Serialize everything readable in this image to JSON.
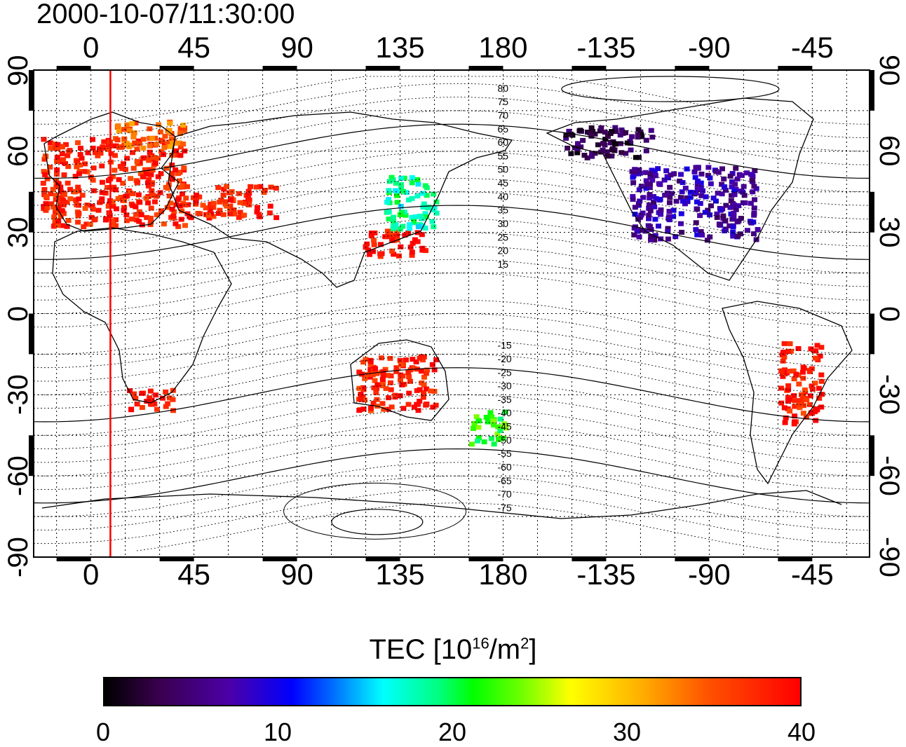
{
  "timestamp": "2000-10-07/11:30:00",
  "lon_ticks_top": [
    "0",
    "45",
    "90",
    "135",
    "180",
    "-135",
    "-90",
    "-45"
  ],
  "lon_ticks_bottom": [
    "0",
    "45",
    "90",
    "135",
    "180",
    "-135",
    "-90",
    "-45"
  ],
  "lat_ticks_left": [
    "90",
    "60",
    "30",
    "0",
    "-30",
    "-60",
    "-90"
  ],
  "lat_ticks_right": [
    "90",
    "60",
    "30",
    "0",
    "-30",
    "-60",
    "-90"
  ],
  "contour_labels": [
    "80",
    "75",
    "70",
    "65",
    "60",
    "55",
    "50",
    "45",
    "40",
    "35",
    "30",
    "25",
    "20",
    "15",
    "-15",
    "-20",
    "-25",
    "-30",
    "-35",
    "-40",
    "-45",
    "-50",
    "-55",
    "-60",
    "-65",
    "-70",
    "-75"
  ],
  "colorbar": {
    "title_prefix": "TEC  [10",
    "title_sup1": "16",
    "title_mid": "/m",
    "title_sup2": "2",
    "title_suffix": "]",
    "min_label": "0",
    "tick_labels": [
      "0",
      "10",
      "20",
      "30",
      "40"
    ],
    "range": [
      0,
      40
    ]
  },
  "colors": {
    "tec_high": "#ff0000",
    "tec_mid": "#00ff00",
    "tec_low": "#0000ff",
    "tec_zero": "#000000",
    "terminator": "#ff0000"
  },
  "map": {
    "lon_range": [
      -25,
      340
    ],
    "lat_range": [
      -90,
      90
    ],
    "terminator_longitude": 8.5
  },
  "tec_regions": [
    {
      "name": "europe",
      "lon": [
        -22,
        40
      ],
      "lat": [
        33,
        66
      ],
      "tec": 38
    },
    {
      "name": "scandinavia",
      "lon": [
        10,
        40
      ],
      "lat": [
        62,
        72
      ],
      "tec": 34
    },
    {
      "name": "middle-east",
      "lon": [
        40,
        80
      ],
      "lat": [
        36,
        48
      ],
      "tec": 38
    },
    {
      "name": "east-asia-south",
      "lon": [
        118,
        145
      ],
      "lat": [
        22,
        32
      ],
      "tec": 39
    },
    {
      "name": "japan",
      "lon": [
        128,
        150
      ],
      "lat": [
        32,
        52
      ],
      "tec": 18
    },
    {
      "name": "north-america",
      "lon": [
        235,
        290
      ],
      "lat": [
        28,
        55
      ],
      "tec": 7
    },
    {
      "name": "alaska-canada",
      "lon": [
        205,
        245
      ],
      "lat": [
        58,
        70
      ],
      "tec": 3
    },
    {
      "name": "south-africa",
      "lon": [
        15,
        35
      ],
      "lat": [
        -35,
        -27
      ],
      "tec": 39
    },
    {
      "name": "australia-west",
      "lon": [
        115,
        150
      ],
      "lat": [
        -35,
        -15
      ],
      "tec": 38
    },
    {
      "name": "new-zealand",
      "lon": [
        165,
        180
      ],
      "lat": [
        -48,
        -35
      ],
      "tec": 22
    },
    {
      "name": "south-america",
      "lon": [
        300,
        318
      ],
      "lat": [
        -40,
        -10
      ],
      "tec": 38
    }
  ]
}
